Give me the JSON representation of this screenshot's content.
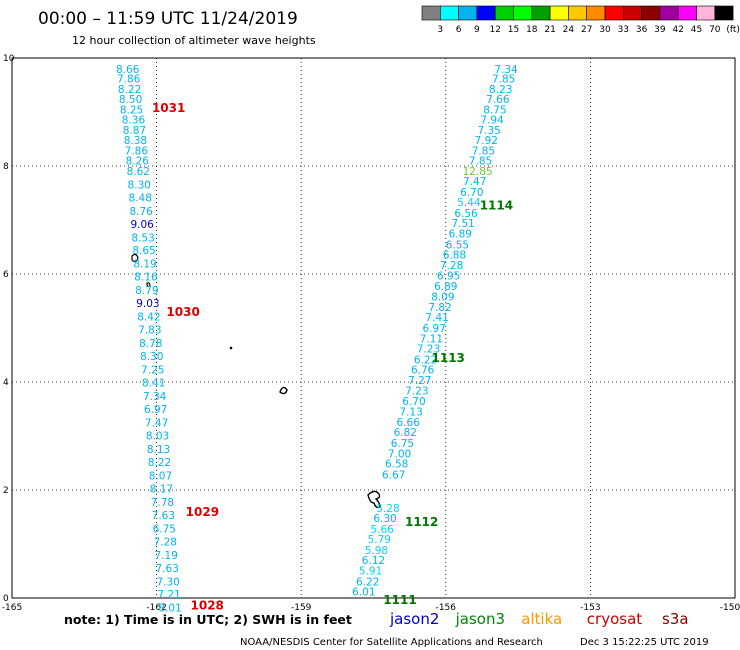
{
  "header": {
    "title": "00:00  –  11:59 UTC 11/24/2019",
    "subtitle": "12 hour collection of altimeter wave heights"
  },
  "colorbar": {
    "labels": [
      "3",
      "6",
      "9",
      "12",
      "15",
      "18",
      "21",
      "24",
      "27",
      "30",
      "33",
      "36",
      "39",
      "42",
      "45",
      "70",
      "(ft)"
    ],
    "colors": [
      "#808080",
      "#00ffff",
      "#00b4f0",
      "#0000ff",
      "#00d000",
      "#00ff00",
      "#00a000",
      "#ffff00",
      "#ffc800",
      "#ff8c00",
      "#ff0000",
      "#c80000",
      "#8c0000",
      "#a000a0",
      "#ff00ff",
      "#ffb4dc",
      "#000000"
    ]
  },
  "footer": {
    "note": "note: 1) Time is in UTC; 2) SWH is in feet",
    "credit": "NOAA/NESDIS Center for Satellite Applications and Research",
    "timestamp": "Dec  3 15:22:25 UTC 2019"
  },
  "legend": [
    {
      "name": "jason2",
      "color": "#0000cc"
    },
    {
      "name": "jason3",
      "color": "#008800"
    },
    {
      "name": "altika",
      "color": "#ff9900"
    },
    {
      "name": "cryosat",
      "color": "#cc0000"
    },
    {
      "name": "s3a",
      "color": "#880000"
    }
  ],
  "chart_data": {
    "type": "scatter",
    "xlim": [
      -165,
      -150
    ],
    "ylim": [
      0,
      10
    ],
    "xticks": [
      "-165",
      "-162",
      "-159",
      "-156",
      "-153",
      "-150"
    ],
    "yticks": [
      "0",
      "2",
      "4",
      "6",
      "8",
      "10"
    ],
    "grid": true,
    "series": [
      {
        "name": "cryosat",
        "points": [
          {
            "x": -162.6,
            "y": 9.8,
            "label": "8.66",
            "color": "#00b4f0"
          },
          {
            "x": -162.58,
            "y": 9.62,
            "label": "7.86",
            "color": "#00b4f0"
          },
          {
            "x": -162.56,
            "y": 9.43,
            "label": "8.22",
            "color": "#00b4f0"
          },
          {
            "x": -162.54,
            "y": 9.24,
            "label": "8.50",
            "color": "#00b4f0"
          },
          {
            "x": -162.52,
            "y": 9.05,
            "label": "8.25",
            "color": "#00b4f0"
          },
          {
            "x": -162.48,
            "y": 8.86,
            "label": "8.36",
            "color": "#00b4f0"
          },
          {
            "x": -162.46,
            "y": 8.67,
            "label": "8.87",
            "color": "#00b4f0"
          },
          {
            "x": -162.44,
            "y": 8.48,
            "label": "8.38",
            "color": "#00b4f0"
          },
          {
            "x": -162.42,
            "y": 8.29,
            "label": "7.86",
            "color": "#00b4f0"
          },
          {
            "x": -162.4,
            "y": 8.1,
            "label": "8.26",
            "color": "#00b4f0"
          },
          {
            "x": -162.38,
            "y": 7.91,
            "label": "8.62",
            "color": "#00b4f0"
          },
          {
            "x": -162.36,
            "y": 7.66,
            "label": "8.30",
            "color": "#00b4f0"
          },
          {
            "x": -162.34,
            "y": 7.42,
            "label": "8.48",
            "color": "#00b4f0"
          },
          {
            "x": -162.32,
            "y": 7.17,
            "label": "8.76",
            "color": "#00b4f0"
          },
          {
            "x": -162.3,
            "y": 6.93,
            "label": "9.06",
            "color": "#0000c8"
          },
          {
            "x": -162.28,
            "y": 6.68,
            "label": "8.53",
            "color": "#00b4f0"
          },
          {
            "x": -162.26,
            "y": 6.44,
            "label": "8.65",
            "color": "#00b4f0"
          },
          {
            "x": -162.24,
            "y": 6.19,
            "label": "8.19",
            "color": "#00b4f0"
          },
          {
            "x": -162.22,
            "y": 5.95,
            "label": "8.16",
            "color": "#00b4f0"
          },
          {
            "x": -162.2,
            "y": 5.7,
            "label": "8.79",
            "color": "#00b4f0"
          },
          {
            "x": -162.18,
            "y": 5.46,
            "label": "9.03",
            "color": "#0000c8"
          },
          {
            "x": -162.16,
            "y": 5.21,
            "label": "8.42",
            "color": "#00b4f0"
          },
          {
            "x": -162.14,
            "y": 4.97,
            "label": "7.83",
            "color": "#00b4f0"
          },
          {
            "x": -162.12,
            "y": 4.72,
            "label": "8.78",
            "color": "#00b4f0"
          },
          {
            "x": -162.1,
            "y": 4.48,
            "label": "8.30",
            "color": "#00b4f0"
          },
          {
            "x": -162.08,
            "y": 4.23,
            "label": "7.25",
            "color": "#00b4f0"
          },
          {
            "x": -162.06,
            "y": 3.99,
            "label": "8.41",
            "color": "#00b4f0"
          },
          {
            "x": -162.04,
            "y": 3.74,
            "label": "7.34",
            "color": "#00b4f0"
          },
          {
            "x": -162.02,
            "y": 3.5,
            "label": "6.97",
            "color": "#00b4f0"
          },
          {
            "x": -162.0,
            "y": 3.25,
            "label": "7.47",
            "color": "#00b4f0"
          },
          {
            "x": -161.98,
            "y": 3.01,
            "label": "8.03",
            "color": "#00b4f0"
          },
          {
            "x": -161.96,
            "y": 2.76,
            "label": "8.13",
            "color": "#00b4f0"
          },
          {
            "x": -161.94,
            "y": 2.52,
            "label": "8.22",
            "color": "#00b4f0"
          },
          {
            "x": -161.92,
            "y": 2.27,
            "label": "8.07",
            "color": "#00b4f0"
          },
          {
            "x": -161.9,
            "y": 2.03,
            "label": "8.17",
            "color": "#00b4f0"
          },
          {
            "x": -161.88,
            "y": 1.78,
            "label": "7.78",
            "color": "#00b4f0"
          },
          {
            "x": -161.86,
            "y": 1.54,
            "label": "7.63",
            "color": "#00b4f0"
          },
          {
            "x": -161.84,
            "y": 1.29,
            "label": "6.75",
            "color": "#00b4f0"
          },
          {
            "x": -161.82,
            "y": 1.05,
            "label": "7.28",
            "color": "#00b4f0"
          },
          {
            "x": -161.8,
            "y": 0.8,
            "label": "7.19",
            "color": "#00b4f0"
          },
          {
            "x": -161.78,
            "y": 0.56,
            "label": "7.63",
            "color": "#00b4f0"
          },
          {
            "x": -161.76,
            "y": 0.31,
            "label": "7.30",
            "color": "#00b4f0"
          },
          {
            "x": -161.74,
            "y": 0.07,
            "label": "7.21",
            "color": "#00b4f0"
          },
          {
            "x": -161.72,
            "y": -0.18,
            "label": "8.01",
            "color": "#00b4f0"
          }
        ]
      },
      {
        "name": "jason3",
        "points": [
          {
            "x": -154.75,
            "y": 9.8,
            "label": "7.34",
            "color": "#00b4f0"
          },
          {
            "x": -154.8,
            "y": 9.62,
            "label": "7.85",
            "color": "#00b4f0"
          },
          {
            "x": -154.86,
            "y": 9.43,
            "label": "8.23",
            "color": "#00b4f0"
          },
          {
            "x": -154.92,
            "y": 9.24,
            "label": "7.66",
            "color": "#00b4f0"
          },
          {
            "x": -154.98,
            "y": 9.05,
            "label": "8.75",
            "color": "#00b4f0"
          },
          {
            "x": -155.04,
            "y": 8.86,
            "label": "7.94",
            "color": "#00b4f0"
          },
          {
            "x": -155.1,
            "y": 8.67,
            "label": "7.35",
            "color": "#00b4f0"
          },
          {
            "x": -155.16,
            "y": 8.48,
            "label": "7.92",
            "color": "#00b4f0"
          },
          {
            "x": -155.22,
            "y": 8.29,
            "label": "7.85",
            "color": "#00b4f0"
          },
          {
            "x": -155.28,
            "y": 8.1,
            "label": "7.85",
            "color": "#00b4f0"
          },
          {
            "x": -155.34,
            "y": 7.91,
            "label": "12.85",
            "color": "#66cc33"
          },
          {
            "x": -155.4,
            "y": 7.72,
            "label": "7.47",
            "color": "#00b4f0"
          },
          {
            "x": -155.46,
            "y": 7.52,
            "label": "6.70",
            "color": "#00b4f0"
          },
          {
            "x": -155.52,
            "y": 7.33,
            "label": "5.44",
            "color": "#00d8f0"
          },
          {
            "x": -155.58,
            "y": 7.13,
            "label": "6.56",
            "color": "#00b4f0"
          },
          {
            "x": -155.64,
            "y": 6.94,
            "label": "7.51",
            "color": "#00b4f0"
          },
          {
            "x": -155.7,
            "y": 6.75,
            "label": "6.89",
            "color": "#00b4f0"
          },
          {
            "x": -155.76,
            "y": 6.55,
            "label": "6.55",
            "color": "#00b4f0"
          },
          {
            "x": -155.82,
            "y": 6.36,
            "label": "6.88",
            "color": "#00b4f0"
          },
          {
            "x": -155.88,
            "y": 6.17,
            "label": "7.28",
            "color": "#00b4f0"
          },
          {
            "x": -155.94,
            "y": 5.97,
            "label": "6.95",
            "color": "#00b4f0"
          },
          {
            "x": -156.0,
            "y": 5.78,
            "label": "6.89",
            "color": "#00b4f0"
          },
          {
            "x": -156.06,
            "y": 5.58,
            "label": "8.09",
            "color": "#00b4f0"
          },
          {
            "x": -156.12,
            "y": 5.39,
            "label": "7.82",
            "color": "#00b4f0"
          },
          {
            "x": -156.18,
            "y": 5.2,
            "label": "7.41",
            "color": "#00b4f0"
          },
          {
            "x": -156.24,
            "y": 5.0,
            "label": "6.97",
            "color": "#00b4f0"
          },
          {
            "x": -156.3,
            "y": 4.81,
            "label": "7.11",
            "color": "#00b4f0"
          },
          {
            "x": -156.36,
            "y": 4.62,
            "label": "7.23",
            "color": "#00b4f0"
          },
          {
            "x": -156.42,
            "y": 4.42,
            "label": "6.22",
            "color": "#00b4f0"
          },
          {
            "x": -156.48,
            "y": 4.23,
            "label": "6.76",
            "color": "#00b4f0"
          },
          {
            "x": -156.54,
            "y": 4.04,
            "label": "7.27",
            "color": "#00b4f0"
          },
          {
            "x": -156.6,
            "y": 3.84,
            "label": "7.23",
            "color": "#00b4f0"
          },
          {
            "x": -156.66,
            "y": 3.65,
            "label": "6.70",
            "color": "#00b4f0"
          },
          {
            "x": -156.72,
            "y": 3.45,
            "label": "7.13",
            "color": "#00b4f0"
          },
          {
            "x": -156.78,
            "y": 3.26,
            "label": "6.66",
            "color": "#00b4f0"
          },
          {
            "x": -156.84,
            "y": 3.07,
            "label": "6.82",
            "color": "#00b4f0"
          },
          {
            "x": -156.9,
            "y": 2.87,
            "label": "6.75",
            "color": "#00b4f0"
          },
          {
            "x": -156.96,
            "y": 2.68,
            "label": "7.00",
            "color": "#00b4f0"
          },
          {
            "x": -157.02,
            "y": 2.49,
            "label": "6.58",
            "color": "#00b4f0"
          },
          {
            "x": -157.08,
            "y": 2.29,
            "label": "6.67",
            "color": "#00b4f0"
          },
          {
            "x": -157.2,
            "y": 1.67,
            "label": "5.28",
            "color": "#00d8f0"
          },
          {
            "x": -157.26,
            "y": 1.48,
            "label": "6.30",
            "color": "#00b4f0"
          },
          {
            "x": -157.32,
            "y": 1.28,
            "label": "5.66",
            "color": "#00d8f0"
          },
          {
            "x": -157.38,
            "y": 1.09,
            "label": "5.79",
            "color": "#00d8f0"
          },
          {
            "x": -157.44,
            "y": 0.89,
            "label": "5.98",
            "color": "#00d8f0"
          },
          {
            "x": -157.5,
            "y": 0.7,
            "label": "6.12",
            "color": "#00b4f0"
          },
          {
            "x": -157.56,
            "y": 0.51,
            "label": "5.91",
            "color": "#00d8f0"
          },
          {
            "x": -157.62,
            "y": 0.31,
            "label": "6.22",
            "color": "#00b4f0"
          },
          {
            "x": -157.7,
            "y": 0.12,
            "label": "6.01",
            "color": "#00b4f0"
          }
        ]
      }
    ],
    "pass_times": [
      {
        "x": -161.75,
        "y": 9.07,
        "label": "1031",
        "color": "#dd0000"
      },
      {
        "x": -161.45,
        "y": 5.3,
        "label": "1030",
        "color": "#dd0000"
      },
      {
        "x": -161.05,
        "y": 1.59,
        "label": "1029",
        "color": "#dd0000"
      },
      {
        "x": -160.95,
        "y": -0.14,
        "label": "1028",
        "color": "#dd0000"
      },
      {
        "x": -154.95,
        "y": 7.27,
        "label": "1114",
        "color": "#007700"
      },
      {
        "x": -155.95,
        "y": 4.44,
        "label": "1113",
        "color": "#007700"
      },
      {
        "x": -156.5,
        "y": 1.41,
        "label": "1112",
        "color": "#007700"
      },
      {
        "x": -156.95,
        "y": -0.04,
        "label": "1111",
        "color": "#007700"
      }
    ]
  }
}
